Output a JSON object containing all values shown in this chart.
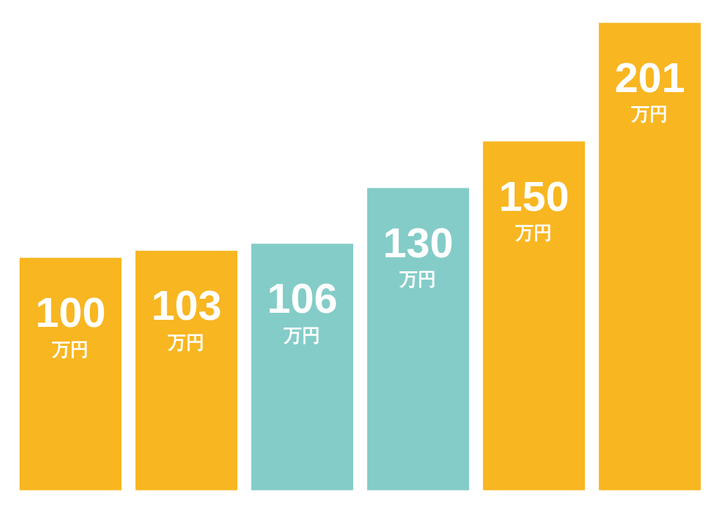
{
  "chart_data": {
    "type": "bar",
    "categories": [
      null,
      null,
      null,
      null,
      null,
      null
    ],
    "values": [
      100,
      103,
      106,
      130,
      150,
      201
    ],
    "colors": [
      "#f8b621",
      "#f8b621",
      "#84ccc8",
      "#84ccc8",
      "#f8b621",
      "#f8b621"
    ],
    "data_labels": true,
    "annotations": [
      "万円",
      "万円",
      "万円",
      "万円",
      "万円",
      "万円"
    ],
    "tick_labels": false
  }
}
